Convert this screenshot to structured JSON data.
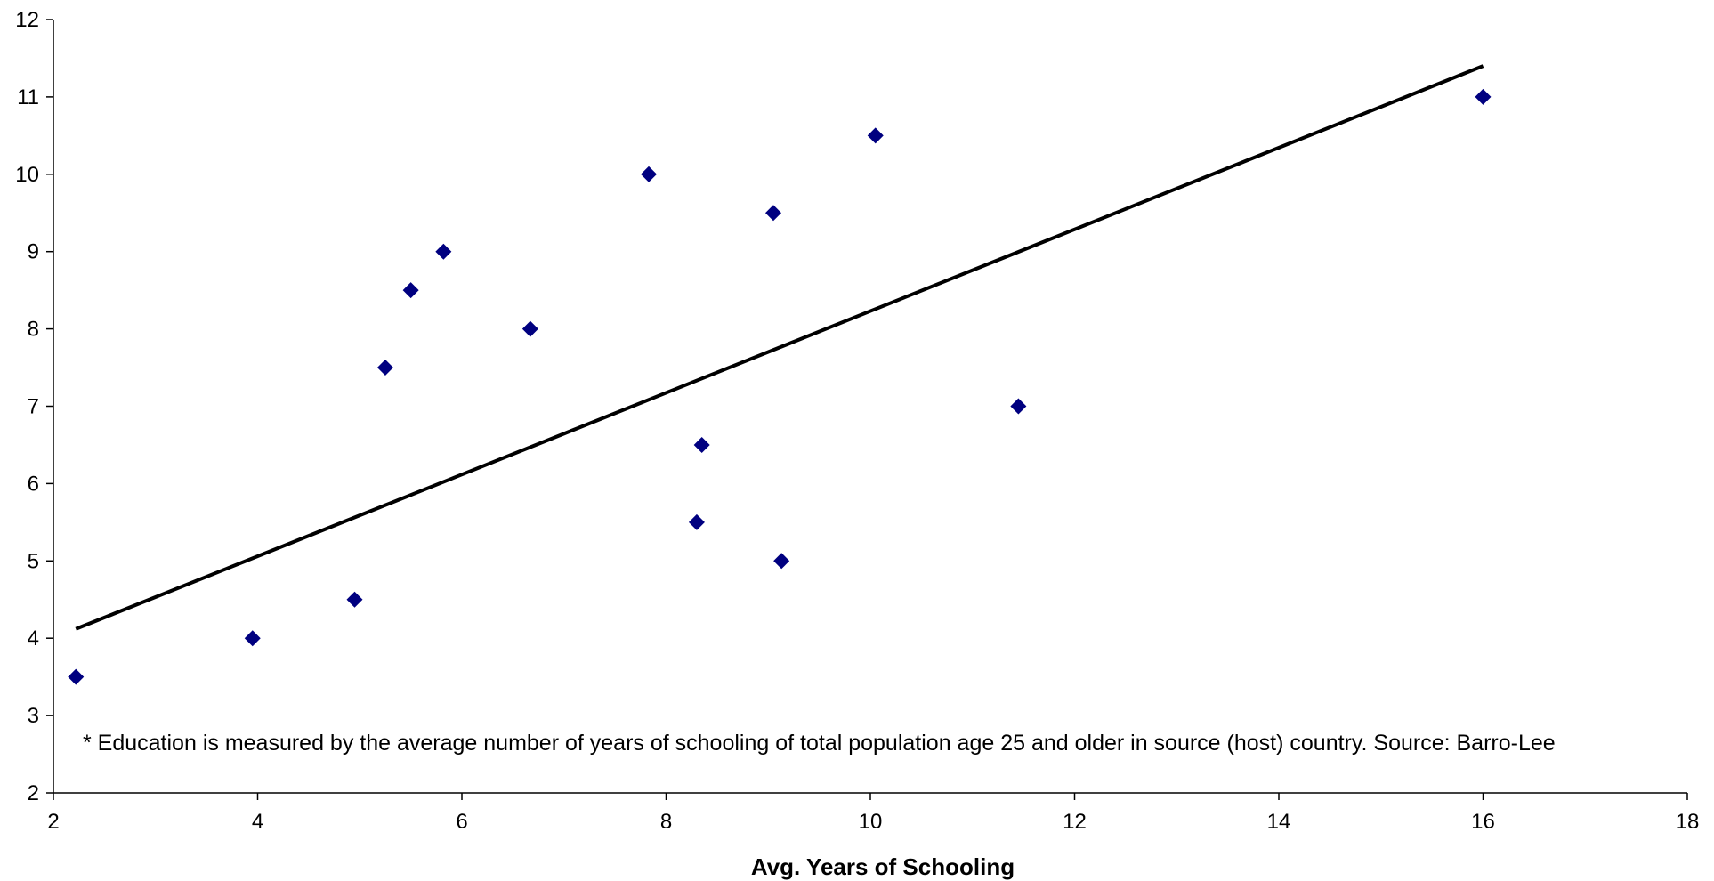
{
  "chart_data": {
    "type": "scatter",
    "title": "",
    "xlabel": "Avg. Years of Schooling",
    "ylabel": "",
    "xlim": [
      2,
      18
    ],
    "ylim": [
      2,
      12
    ],
    "x_ticks": [
      2,
      4,
      6,
      8,
      10,
      12,
      14,
      16,
      18
    ],
    "y_ticks": [
      2,
      3,
      4,
      5,
      6,
      7,
      8,
      9,
      10,
      11,
      12
    ],
    "grid": false,
    "legend": "none",
    "series": [
      {
        "marker": "diamond",
        "color": "#000080",
        "points": [
          {
            "x": 2.22,
            "y": 3.5
          },
          {
            "x": 3.95,
            "y": 4.0
          },
          {
            "x": 4.95,
            "y": 4.5
          },
          {
            "x": 5.25,
            "y": 7.5
          },
          {
            "x": 5.5,
            "y": 8.5
          },
          {
            "x": 5.82,
            "y": 9.0
          },
          {
            "x": 6.67,
            "y": 8.0
          },
          {
            "x": 7.83,
            "y": 10.0
          },
          {
            "x": 8.3,
            "y": 5.5
          },
          {
            "x": 8.35,
            "y": 6.5
          },
          {
            "x": 9.05,
            "y": 9.5
          },
          {
            "x": 9.13,
            "y": 5.0
          },
          {
            "x": 10.05,
            "y": 10.5
          },
          {
            "x": 11.45,
            "y": 7.0
          },
          {
            "x": 16.0,
            "y": 11.0
          }
        ]
      }
    ],
    "trendline": {
      "type": "linear",
      "color": "#000000",
      "x": [
        2.22,
        16.0
      ],
      "y": [
        4.12,
        11.4
      ]
    },
    "annotation": "* Education is measured by the average number of years of schooling of total population age 25 and older in source (host) country. Source: Barro-Lee"
  }
}
